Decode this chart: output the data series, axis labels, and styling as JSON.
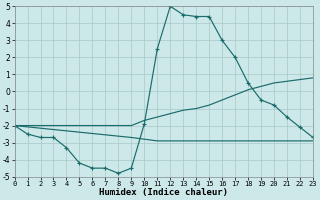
{
  "background_color": "#cde8e8",
  "grid_color": "#a8c8c8",
  "line_color": "#1a6b6b",
  "xlabel": "Humidex (Indice chaleur)",
  "ylim": [
    -5,
    5
  ],
  "xlim": [
    0,
    23
  ],
  "yticks": [
    -5,
    -4,
    -3,
    -2,
    -1,
    0,
    1,
    2,
    3,
    4,
    5
  ],
  "xticks": [
    0,
    1,
    2,
    3,
    4,
    5,
    6,
    7,
    8,
    9,
    10,
    11,
    12,
    13,
    14,
    15,
    16,
    17,
    18,
    19,
    20,
    21,
    22,
    23
  ],
  "s1_x": [
    0,
    1,
    2,
    3,
    4,
    5,
    6,
    7,
    8,
    9,
    10,
    11,
    12,
    13,
    14,
    15,
    16,
    17,
    18,
    19,
    20,
    21,
    22,
    23
  ],
  "s1_y": [
    -2.0,
    -2.5,
    -2.7,
    -2.7,
    -3.3,
    -4.2,
    -4.5,
    -4.5,
    -4.8,
    -4.5,
    -1.9,
    2.5,
    5.0,
    4.5,
    4.4,
    4.4,
    3.0,
    2.0,
    0.5,
    -0.5,
    -0.8,
    -1.5,
    -2.1,
    -2.7
  ],
  "s2_x": [
    0,
    9,
    10,
    11,
    12,
    13,
    14,
    15,
    16,
    17,
    18,
    19,
    20,
    21,
    22,
    23
  ],
  "s2_y": [
    -2.0,
    -2.0,
    -1.7,
    -1.5,
    -1.3,
    -1.1,
    -1.0,
    -0.8,
    -0.5,
    -0.2,
    0.1,
    0.3,
    0.5,
    0.6,
    0.7,
    0.8
  ],
  "s3_x": [
    0,
    9,
    10,
    11,
    12,
    13,
    14,
    15,
    16,
    17,
    18,
    19,
    20,
    21,
    22,
    23
  ],
  "s3_y": [
    -2.0,
    -2.7,
    -2.8,
    -2.9,
    -2.9,
    -2.9,
    -2.9,
    -2.9,
    -2.9,
    -2.9,
    -2.9,
    -2.9,
    -2.9,
    -2.9,
    -2.9,
    -2.9
  ]
}
